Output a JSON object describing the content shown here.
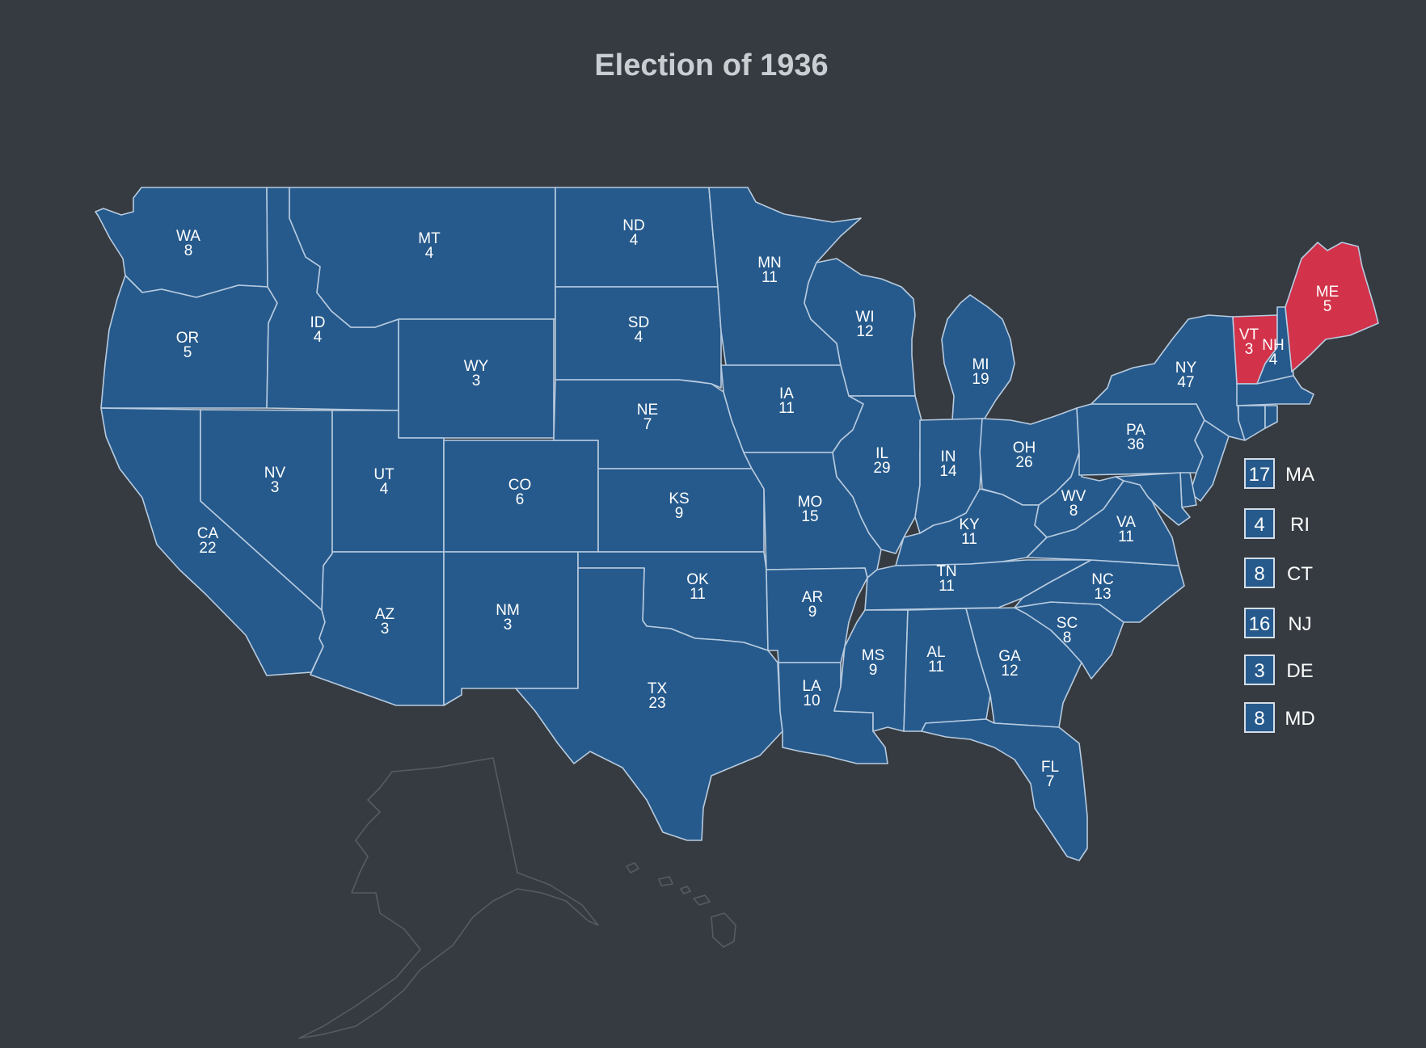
{
  "title": "Election of 1936",
  "colors": {
    "background": "#353b40",
    "dem": "#265a8c",
    "rep": "#d2334a",
    "border": "#b8cbe0",
    "nonvoting": "#555c63"
  },
  "states": {
    "WA": {
      "abbr": "WA",
      "votes": "8",
      "party": "dem"
    },
    "OR": {
      "abbr": "OR",
      "votes": "5",
      "party": "dem"
    },
    "CA": {
      "abbr": "CA",
      "votes": "22",
      "party": "dem"
    },
    "ID": {
      "abbr": "ID",
      "votes": "4",
      "party": "dem"
    },
    "NV": {
      "abbr": "NV",
      "votes": "3",
      "party": "dem"
    },
    "MT": {
      "abbr": "MT",
      "votes": "4",
      "party": "dem"
    },
    "WY": {
      "abbr": "WY",
      "votes": "3",
      "party": "dem"
    },
    "UT": {
      "abbr": "UT",
      "votes": "4",
      "party": "dem"
    },
    "CO": {
      "abbr": "CO",
      "votes": "6",
      "party": "dem"
    },
    "AZ": {
      "abbr": "AZ",
      "votes": "3",
      "party": "dem"
    },
    "NM": {
      "abbr": "NM",
      "votes": "3",
      "party": "dem"
    },
    "ND": {
      "abbr": "ND",
      "votes": "4",
      "party": "dem"
    },
    "SD": {
      "abbr": "SD",
      "votes": "4",
      "party": "dem"
    },
    "NE": {
      "abbr": "NE",
      "votes": "7",
      "party": "dem"
    },
    "KS": {
      "abbr": "KS",
      "votes": "9",
      "party": "dem"
    },
    "OK": {
      "abbr": "OK",
      "votes": "11",
      "party": "dem"
    },
    "TX": {
      "abbr": "TX",
      "votes": "23",
      "party": "dem"
    },
    "MN": {
      "abbr": "MN",
      "votes": "11",
      "party": "dem"
    },
    "IA": {
      "abbr": "IA",
      "votes": "11",
      "party": "dem"
    },
    "MO": {
      "abbr": "MO",
      "votes": "15",
      "party": "dem"
    },
    "AR": {
      "abbr": "AR",
      "votes": "9",
      "party": "dem"
    },
    "LA": {
      "abbr": "LA",
      "votes": "10",
      "party": "dem"
    },
    "WI": {
      "abbr": "WI",
      "votes": "12",
      "party": "dem"
    },
    "IL": {
      "abbr": "IL",
      "votes": "29",
      "party": "dem"
    },
    "MI": {
      "abbr": "MI",
      "votes": "19",
      "party": "dem"
    },
    "IN": {
      "abbr": "IN",
      "votes": "14",
      "party": "dem"
    },
    "OH": {
      "abbr": "OH",
      "votes": "26",
      "party": "dem"
    },
    "KY": {
      "abbr": "KY",
      "votes": "11",
      "party": "dem"
    },
    "TN": {
      "abbr": "TN",
      "votes": "11",
      "party": "dem"
    },
    "MS": {
      "abbr": "MS",
      "votes": "9",
      "party": "dem"
    },
    "AL": {
      "abbr": "AL",
      "votes": "11",
      "party": "dem"
    },
    "GA": {
      "abbr": "GA",
      "votes": "12",
      "party": "dem"
    },
    "FL": {
      "abbr": "FL",
      "votes": "7",
      "party": "dem"
    },
    "SC": {
      "abbr": "SC",
      "votes": "8",
      "party": "dem"
    },
    "NC": {
      "abbr": "NC",
      "votes": "13",
      "party": "dem"
    },
    "VA": {
      "abbr": "VA",
      "votes": "11",
      "party": "dem"
    },
    "WV": {
      "abbr": "WV",
      "votes": "8",
      "party": "dem"
    },
    "PA": {
      "abbr": "PA",
      "votes": "36",
      "party": "dem"
    },
    "NY": {
      "abbr": "NY",
      "votes": "47",
      "party": "dem"
    },
    "VT": {
      "abbr": "VT",
      "votes": "3",
      "party": "rep"
    },
    "NH": {
      "abbr": "NH",
      "votes": "4",
      "party": "dem"
    },
    "ME": {
      "abbr": "ME",
      "votes": "5",
      "party": "rep"
    },
    "MA": {
      "abbr": "MA",
      "votes": "17",
      "party": "dem"
    },
    "RI": {
      "abbr": "RI",
      "votes": "4",
      "party": "dem"
    },
    "CT": {
      "abbr": "CT",
      "votes": "8",
      "party": "dem"
    },
    "NJ": {
      "abbr": "NJ",
      "votes": "16",
      "party": "dem"
    },
    "DE": {
      "abbr": "DE",
      "votes": "3",
      "party": "dem"
    },
    "MD": {
      "abbr": "MD",
      "votes": "8",
      "party": "dem"
    }
  },
  "territories": [
    "Alaska",
    "Hawaii"
  ]
}
